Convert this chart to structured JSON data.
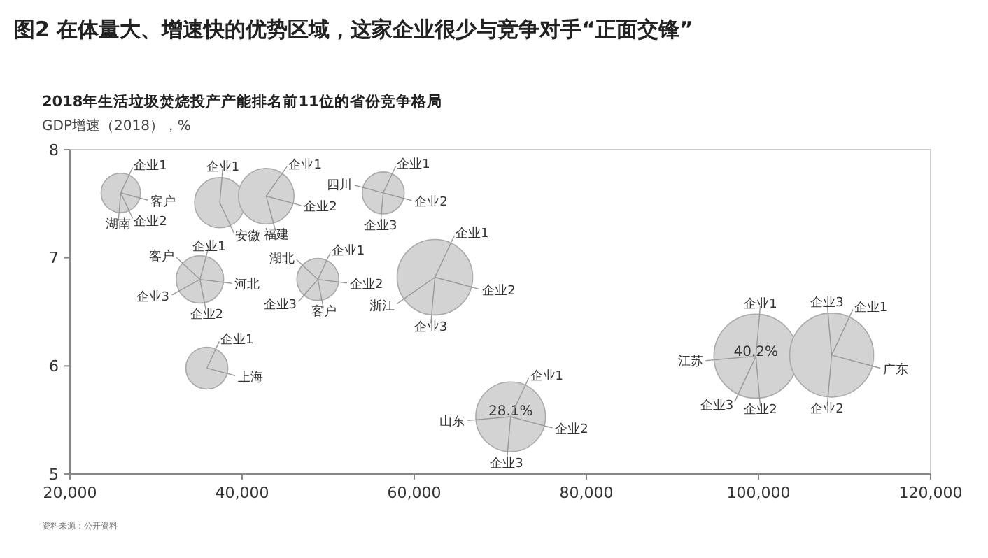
{
  "chart_data": {
    "type": "bubble",
    "title": "图2 在体量大、增速快的优势区域，这家企业很少与竞争对手“正面交锋”",
    "subtitle": "2018年生活垃圾焚烧投产产能排名前11位的省份竞争格局",
    "ylabel": "GDP增速（2018），%",
    "series": [
      {
        "color": "#d3d3d3",
        "x": [
          25900,
          37400,
          42800,
          56400,
          35100,
          48800,
          62400,
          35900,
          71200,
          99700,
          108500
        ],
        "values": [
          7.6,
          7.51,
          7.57,
          7.6,
          6.8,
          6.8,
          6.82,
          5.98,
          5.53,
          6.09,
          6.1
        ],
        "sizes": [
          0.22,
          0.36,
          0.44,
          0.25,
          0.32,
          0.25,
          0.81,
          0.25,
          0.69,
          1,
          1
        ]
      }
    ],
    "xlim": [
      20000,
      120000
    ],
    "xticks": [
      {
        "value": 20000,
        "label": "20,000"
      },
      {
        "value": 40000,
        "label": "40,000"
      },
      {
        "value": 60000,
        "label": "60,000"
      },
      {
        "value": 80000,
        "label": "80,000"
      },
      {
        "value": 100000,
        "label": "100,000"
      },
      {
        "value": 120000,
        "label": "120,000"
      }
    ],
    "ylim": [
      5,
      8
    ],
    "yticks": [
      5,
      6,
      7,
      8
    ],
    "annotations": [
      {
        "text": "企业1",
        "x": 25900,
        "y": 7.6
      },
      {
        "text": "客户",
        "x": 25900,
        "y": 7.6
      },
      {
        "text": "湖南",
        "x": 25900,
        "y": 7.6
      },
      {
        "text": "企业2",
        "x": 25900,
        "y": 7.6
      },
      {
        "text": "企业1",
        "x": 37400,
        "y": 7.51
      },
      {
        "text": "安徽",
        "x": 37400,
        "y": 7.51
      },
      {
        "text": "企业1",
        "x": 42800,
        "y": 7.57
      },
      {
        "text": "企业2",
        "x": 42800,
        "y": 7.57
      },
      {
        "text": "福建",
        "x": 42800,
        "y": 7.57
      },
      {
        "text": "企业1",
        "x": 56400,
        "y": 7.6
      },
      {
        "text": "企业2",
        "x": 56400,
        "y": 7.6
      },
      {
        "text": "企业3",
        "x": 56400,
        "y": 7.6
      },
      {
        "text": "四川",
        "x": 56400,
        "y": 7.6
      },
      {
        "text": "企业1",
        "x": 35100,
        "y": 6.8
      },
      {
        "text": "河北",
        "x": 35100,
        "y": 6.8
      },
      {
        "text": "企业2",
        "x": 35100,
        "y": 6.8
      },
      {
        "text": "企业3",
        "x": 35100,
        "y": 6.8
      },
      {
        "text": "客户",
        "x": 35100,
        "y": 6.8
      },
      {
        "text": "企业1",
        "x": 48800,
        "y": 6.8
      },
      {
        "text": "企业2",
        "x": 48800,
        "y": 6.8
      },
      {
        "text": "客户",
        "x": 48800,
        "y": 6.8
      },
      {
        "text": "企业3",
        "x": 48800,
        "y": 6.8
      },
      {
        "text": "湖北",
        "x": 48800,
        "y": 6.8
      },
      {
        "text": "企业1",
        "x": 62400,
        "y": 6.82
      },
      {
        "text": "企业2",
        "x": 62400,
        "y": 6.82
      },
      {
        "text": "企业3",
        "x": 62400,
        "y": 6.82
      },
      {
        "text": "浙江",
        "x": 62400,
        "y": 6.82
      },
      {
        "text": "企业1",
        "x": 35900,
        "y": 5.98
      },
      {
        "text": "上海",
        "x": 35900,
        "y": 5.98
      },
      {
        "text": "企业1",
        "x": 71200,
        "y": 5.53
      },
      {
        "text": "企业2",
        "x": 71200,
        "y": 5.53
      },
      {
        "text": "企业3",
        "x": 71200,
        "y": 5.53
      },
      {
        "text": "山东",
        "x": 71200,
        "y": 5.53
      },
      {
        "text": "28.1%",
        "x": 71200,
        "y": 5.59
      },
      {
        "text": "40.2%",
        "x": 99700,
        "y": 6.14
      },
      {
        "text": "企业1",
        "x": 99700,
        "y": 6.09
      },
      {
        "text": "企业2",
        "x": 99700,
        "y": 6.09
      },
      {
        "text": "企业3",
        "x": 99700,
        "y": 6.09
      },
      {
        "text": "江苏",
        "x": 99700,
        "y": 6.09
      },
      {
        "text": "企业1",
        "x": 108500,
        "y": 6.1
      },
      {
        "text": "广东",
        "x": 108500,
        "y": 6.1
      },
      {
        "text": "企业2",
        "x": 108500,
        "y": 6.1
      },
      {
        "text": "企业3",
        "x": 108500,
        "y": 6.1
      },
      "资料来源：公开资料"
    ]
  }
}
